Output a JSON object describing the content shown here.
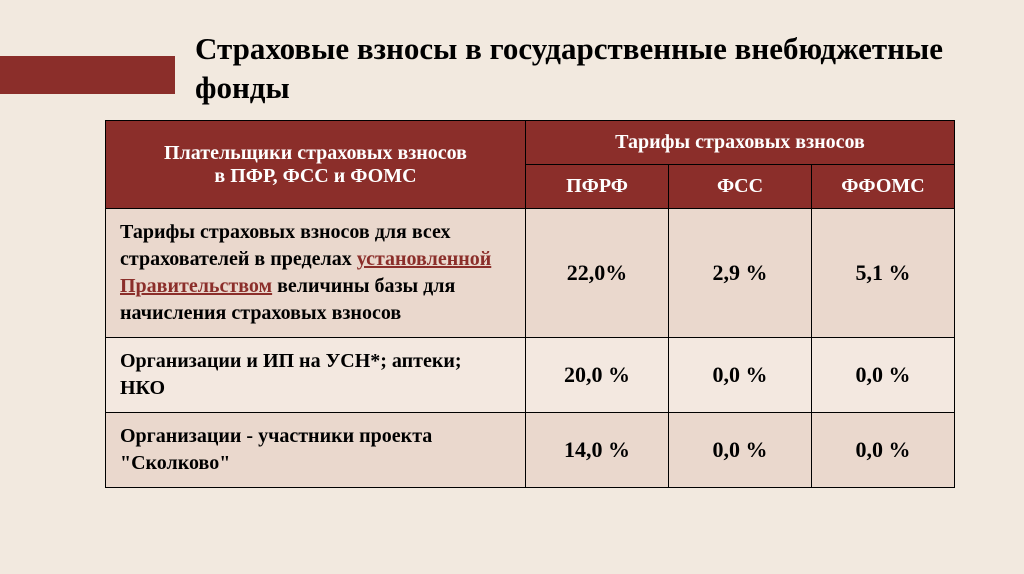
{
  "title": "Страховые взносы в государственные внебюджетные фонды",
  "table": {
    "header": {
      "payer_line1": "Плательщики страховых взносов",
      "payer_line2": "в ПФР, ФСС и ФОМС",
      "tariffs": "Тарифы страховых взносов",
      "col1": "ПФРФ",
      "col2": "ФСС",
      "col3": "ФФОМС"
    },
    "rows": [
      {
        "desc_pre": "Тарифы страховых взносов для всех страхователей в пределах ",
        "desc_link": "установленной Правительством",
        "desc_post": " величины базы для начисления страховых взносов",
        "v1": "22,0%",
        "v2": "2,9 %",
        "v3": "5,1 %"
      },
      {
        "desc": "Организации и ИП на УСН*; аптеки; НКО",
        "v1": "20,0 %",
        "v2": "0,0 %",
        "v3": "0,0 %"
      },
      {
        "desc": "Организации - участники проекта \"Сколково\"",
        "v1": "14,0 %",
        "v2": "0,0 %",
        "v3": "0,0 %"
      }
    ]
  },
  "styling": {
    "background_color": "#f2e9df",
    "band_color": "#8b2e2a",
    "header_bg": "#8b2e2a",
    "header_text_color": "#ffffff",
    "row_a_bg": "#ead8cd",
    "row_b_bg": "#f3e8e0",
    "text_color": "#000000",
    "link_color": "#8b2e2a",
    "title_fontsize": 31,
    "header_fontsize": 20,
    "body_fontsize": 20,
    "value_fontsize": 22,
    "border_color": "#000000",
    "font_family": "Georgia, Times New Roman, serif"
  }
}
